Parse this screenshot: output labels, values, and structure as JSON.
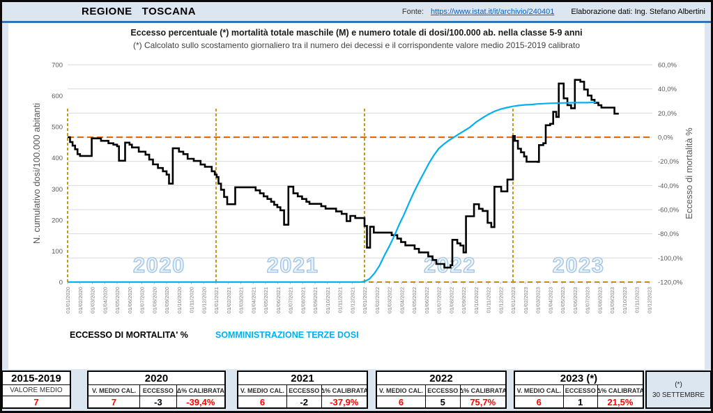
{
  "header": {
    "region": "REGIONE   TOSCANA",
    "fonte_label": "Fonte:",
    "fonte_link": "https://www.istat.it/it/archivio/240401",
    "elaborazione": "Elaborazione dati: Ing. Stefano Albertini"
  },
  "chart_data": {
    "type": "line",
    "title": "Eccesso percentuale (*) mortalità totale maschile (M) e numero totale di dosi/100.000 ab. nella classe 5-9 anni",
    "subtitle": "(*) Calcolato sullo scostamento giornaliero tra il numero dei decessi e il corrispondente valore medio 2015-2019 calibrato",
    "left_axis": {
      "label": "N. cumulativo dosi/100.000 abitanti",
      "min": 0,
      "max": 700,
      "tick_labels": [
        "0",
        "100",
        "200",
        "300",
        "400",
        "500",
        "600",
        "700"
      ]
    },
    "right_axis": {
      "label": "Eccesso di mortalità %",
      "min": -120,
      "max": 60,
      "tick_labels": [
        "60,0%",
        "40,0%",
        "20,0%",
        "0,0%",
        "-20,0%",
        "-40,0%",
        "-60,0%",
        "-80,0%",
        "-100,0%",
        "-120,0%"
      ]
    },
    "x_axis": {
      "ticks": [
        "01/01/2020",
        "01/02/2020",
        "01/03/2020",
        "01/04/2020",
        "01/05/2020",
        "01/06/2020",
        "01/07/2020",
        "01/08/2020",
        "01/09/2020",
        "01/10/2020",
        "01/11/2020",
        "01/12/2020",
        "01/01/2021",
        "01/02/2021",
        "01/03/2021",
        "01/04/2021",
        "01/05/2021",
        "01/06/2021",
        "01/07/2021",
        "01/08/2021",
        "01/09/2021",
        "01/10/2021",
        "01/11/2021",
        "01/12/2021",
        "01/01/2022",
        "01/02/2022",
        "01/03/2022",
        "01/04/2022",
        "01/05/2022",
        "01/06/2022",
        "01/07/2022",
        "01/08/2022",
        "01/09/2022",
        "01/10/2022",
        "01/11/2022",
        "01/12/2022",
        "01/01/2023",
        "01/02/2023",
        "01/03/2023",
        "01/04/2023",
        "01/05/2023",
        "01/06/2023",
        "01/07/2023",
        "01/08/2023",
        "01/09/2023",
        "01/10/2023",
        "01/11/2023",
        "01/12/2023"
      ]
    },
    "year_labels": [
      {
        "text": "2020",
        "month": 7.4
      },
      {
        "text": "2021",
        "month": 18.2
      },
      {
        "text": "2022",
        "month": 30.9
      },
      {
        "text": "2023",
        "month": 41.3
      }
    ],
    "reference": {
      "zero_line_color": "#E26B0A",
      "year_marker_color": "#BF8F00",
      "year_start_months": [
        0,
        12,
        24,
        36
      ],
      "gridline_color": "#D9D9D9",
      "year_label_fill": "#EAF2FB",
      "year_label_stroke": "#9DC3E6"
    },
    "series": [
      {
        "name": "ECCESSO DI MORTALITA' %",
        "axis": "right",
        "unit": "%",
        "color": "#000000",
        "render": "step",
        "points": [
          [
            0,
            0
          ],
          [
            0.2,
            -4
          ],
          [
            0.4,
            -7
          ],
          [
            0.6,
            -10
          ],
          [
            0.8,
            -14
          ],
          [
            1,
            -15.5
          ],
          [
            1.95,
            -1
          ],
          [
            2.7,
            -3
          ],
          [
            3.3,
            -5
          ],
          [
            3.7,
            -6.2
          ],
          [
            4,
            -7.5
          ],
          [
            4.15,
            -19.5
          ],
          [
            4.65,
            -4.5
          ],
          [
            5,
            -6.2
          ],
          [
            5.2,
            -8.5
          ],
          [
            5.75,
            -12
          ],
          [
            6.3,
            -14.5
          ],
          [
            6.6,
            -18.5
          ],
          [
            6.9,
            -22.5
          ],
          [
            7.3,
            -25.5
          ],
          [
            7.7,
            -28.2
          ],
          [
            8,
            -31
          ],
          [
            8.2,
            -38.5
          ],
          [
            8.5,
            -9.2
          ],
          [
            9,
            -12
          ],
          [
            9.35,
            -14
          ],
          [
            9.7,
            -17.9
          ],
          [
            10.2,
            -19.7
          ],
          [
            10.75,
            -22.6
          ],
          [
            11.1,
            -24.5
          ],
          [
            11.65,
            -28.2
          ],
          [
            11.9,
            -31
          ],
          [
            12.05,
            -33
          ],
          [
            12.2,
            -38.5
          ],
          [
            12.4,
            -43.5
          ],
          [
            12.65,
            -49.5
          ],
          [
            12.9,
            -55.5
          ],
          [
            13.55,
            -41.5
          ],
          [
            15.2,
            -44
          ],
          [
            15.55,
            -46.5
          ],
          [
            15.85,
            -49
          ],
          [
            16.15,
            -51.2
          ],
          [
            16.45,
            -53.5
          ],
          [
            16.7,
            -56
          ],
          [
            16.95,
            -58
          ],
          [
            17.2,
            -60.5
          ],
          [
            17.5,
            -72.5
          ],
          [
            17.85,
            -41
          ],
          [
            18.25,
            -46.5
          ],
          [
            18.6,
            -49
          ],
          [
            18.95,
            -51.2
          ],
          [
            19.3,
            -53.5
          ],
          [
            19.55,
            -55.2
          ],
          [
            20.5,
            -57.2
          ],
          [
            20.85,
            -59.2
          ],
          [
            21.7,
            -61.5
          ],
          [
            22.15,
            -63.5
          ],
          [
            22.55,
            -69.5
          ],
          [
            22.85,
            -65.2
          ],
          [
            23.25,
            -67
          ],
          [
            24,
            -73.5
          ],
          [
            24.2,
            -91.5
          ],
          [
            24.45,
            -74.2
          ],
          [
            24.75,
            -79
          ],
          [
            26.2,
            -81.2
          ],
          [
            26.65,
            -84
          ],
          [
            26.95,
            -86.9
          ],
          [
            27.3,
            -89.6
          ],
          [
            28.05,
            -92.5
          ],
          [
            28.4,
            -95.4
          ],
          [
            29.15,
            -98.7
          ],
          [
            29.5,
            -101.7
          ],
          [
            29.8,
            -105
          ],
          [
            30.45,
            -108
          ],
          [
            30.95,
            -106
          ],
          [
            31.1,
            -85
          ],
          [
            31.5,
            -87.9
          ],
          [
            31.75,
            -89.7
          ],
          [
            32,
            -95.5
          ],
          [
            32.2,
            -65.5
          ],
          [
            32.85,
            -55.5
          ],
          [
            33.25,
            -59.3
          ],
          [
            33.55,
            -61.1
          ],
          [
            33.95,
            -70.9
          ],
          [
            34.25,
            -74.5
          ],
          [
            34.5,
            -41.1
          ],
          [
            35.05,
            -44.9
          ],
          [
            35.55,
            -35.1
          ],
          [
            36,
            1
          ],
          [
            36.15,
            -3
          ],
          [
            36.4,
            -9.5
          ],
          [
            36.65,
            -12.5
          ],
          [
            36.9,
            -16
          ],
          [
            37.1,
            -20.3
          ],
          [
            38,
            -20.5
          ],
          [
            38.1,
            -6.5
          ],
          [
            38.45,
            -5
          ],
          [
            38.65,
            9.9
          ],
          [
            39,
            11.1
          ],
          [
            39.25,
            21
          ],
          [
            39.5,
            16.8
          ],
          [
            39.7,
            44.5
          ],
          [
            40.1,
            32.2
          ],
          [
            40.4,
            26.6
          ],
          [
            40.7,
            24
          ],
          [
            41,
            47.5
          ],
          [
            41.45,
            46
          ],
          [
            41.75,
            39.5
          ],
          [
            42.05,
            34.5
          ],
          [
            42.35,
            31
          ],
          [
            42.6,
            28.5
          ],
          [
            42.9,
            26.5
          ],
          [
            43.15,
            24.5
          ],
          [
            44.05,
            24.5
          ],
          [
            44.2,
            19.5
          ],
          [
            44.55,
            19.5
          ]
        ]
      },
      {
        "name": "SOMMINISTRAZIONE TERZE DOSI",
        "axis": "left",
        "unit": "dosi/100.000 ab.",
        "color": "#00B0F0",
        "render": "linear",
        "points": [
          [
            0,
            0
          ],
          [
            23.7,
            0
          ],
          [
            24,
            2
          ],
          [
            24.4,
            10
          ],
          [
            24.8,
            28
          ],
          [
            25.2,
            52
          ],
          [
            25.6,
            85
          ],
          [
            26,
            115
          ],
          [
            26.4,
            148
          ],
          [
            26.8,
            185
          ],
          [
            27.2,
            218
          ],
          [
            27.6,
            255
          ],
          [
            28,
            290
          ],
          [
            28.4,
            322
          ],
          [
            28.8,
            352
          ],
          [
            29.2,
            382
          ],
          [
            29.6,
            408
          ],
          [
            30,
            430
          ],
          [
            30.4,
            444
          ],
          [
            30.8,
            456
          ],
          [
            31.2,
            466
          ],
          [
            31.6,
            476
          ],
          [
            32,
            486
          ],
          [
            32.5,
            498
          ],
          [
            33,
            515
          ],
          [
            33.5,
            528
          ],
          [
            34,
            540
          ],
          [
            34.5,
            550
          ],
          [
            35,
            557
          ],
          [
            35.5,
            562
          ],
          [
            36,
            566
          ],
          [
            36.5,
            569
          ],
          [
            37,
            571
          ],
          [
            37.5,
            572
          ],
          [
            38,
            574
          ],
          [
            39,
            576
          ],
          [
            40,
            577
          ],
          [
            41,
            578
          ],
          [
            42,
            578
          ],
          [
            42.7,
            579
          ]
        ]
      }
    ]
  },
  "legend": {
    "mortality": "ECCESSO DI MORTALITA' %",
    "doses": "SOMMINISTRAZIONE TERZE DOSI"
  },
  "footer_table": {
    "baseline": {
      "year": "2015-2019",
      "label": "VALORE MEDIO",
      "value": "7"
    },
    "col_headers": [
      "V. MEDIO CAL.",
      "ECCESSO",
      "Δ% CALIBRATA"
    ],
    "years": [
      {
        "year": "2020",
        "v_medio": "7",
        "eccesso": "-3",
        "delta": "-39,4%"
      },
      {
        "year": "2021",
        "v_medio": "6",
        "eccesso": "-2",
        "delta": "-37,9%"
      },
      {
        "year": "2022",
        "v_medio": "6",
        "eccesso": "5",
        "delta": "75,7%"
      },
      {
        "year": "2023 (*)",
        "v_medio": "6",
        "eccesso": "1",
        "delta": "21,5%"
      }
    ],
    "note": {
      "line1": "(*)",
      "line2": "30 SETTEMBRE"
    }
  }
}
